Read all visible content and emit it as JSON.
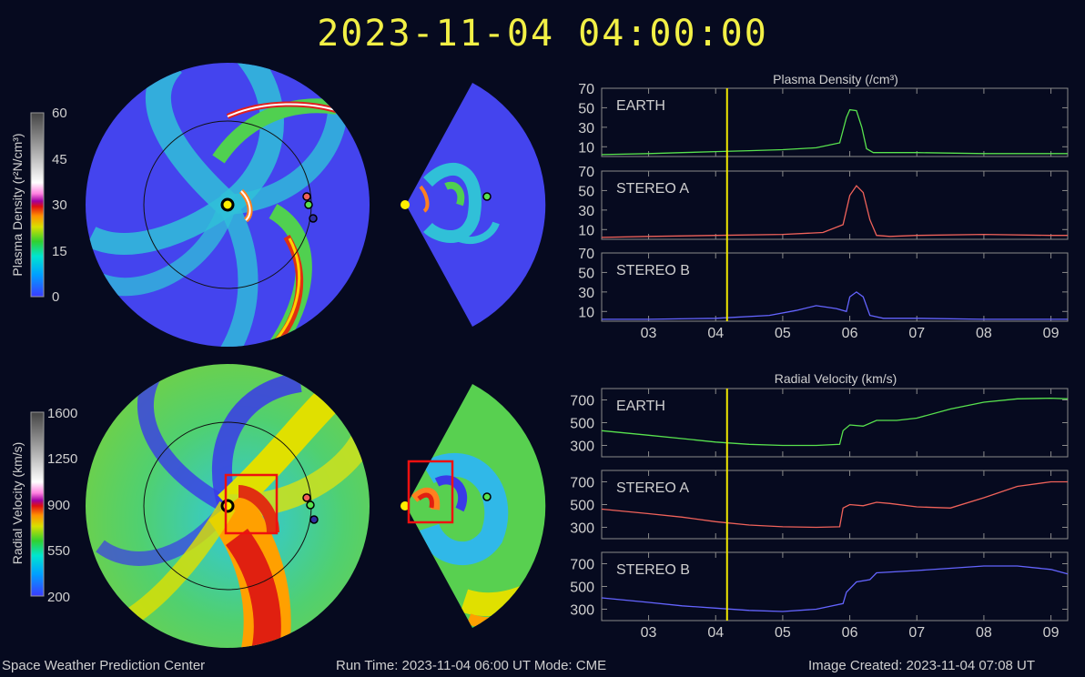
{
  "header": {
    "timestamp": "2023-11-04 04:00:00"
  },
  "colors": {
    "background": "#060a1f",
    "title": "#f2f046",
    "earth": "#58e24e",
    "stereo_a": "#f0625a",
    "stereo_b": "#6464ff",
    "marker_line": "#f2e800"
  },
  "colorbars": {
    "density": {
      "label": "Plasma Density (r²N/cm³)",
      "ticks": [
        "60",
        "45",
        "30",
        "15",
        "0"
      ]
    },
    "velocity": {
      "label": "Radial Velocity (km/s)",
      "ticks": [
        "1600",
        "1250",
        "900",
        "550",
        "200"
      ]
    }
  },
  "footer": {
    "org": "Space Weather Prediction Center",
    "run": "Run Time: 2023-11-04 06:00 UT   Mode: CME",
    "created": "Image Created: 2023-11-04 07:08 UT"
  },
  "chart_data": [
    {
      "type": "line",
      "title": "Plasma Density (/cm³)",
      "x_ticks": [
        "03",
        "04",
        "05",
        "06",
        "07",
        "08",
        "09"
      ],
      "xlim": [
        2.3,
        9.25
      ],
      "ylim": [
        0,
        70
      ],
      "y_ticks": [
        "70",
        "50",
        "30",
        "10"
      ],
      "current_time": 4.17,
      "series": [
        {
          "name": "EARTH",
          "color": "#58e24e",
          "x": [
            2.3,
            3.0,
            3.5,
            4.0,
            4.5,
            5.0,
            5.5,
            5.85,
            5.95,
            6.0,
            6.1,
            6.18,
            6.25,
            6.35,
            6.5,
            7.0,
            8.0,
            9.0,
            9.25
          ],
          "values": [
            2,
            3,
            4,
            5,
            6,
            7,
            9,
            14,
            40,
            48,
            47,
            30,
            8,
            4,
            4,
            4,
            3,
            3,
            3
          ]
        },
        {
          "name": "STEREO A",
          "color": "#f0625a",
          "x": [
            2.3,
            3.0,
            4.0,
            5.0,
            5.6,
            5.9,
            6.0,
            6.1,
            6.2,
            6.3,
            6.4,
            6.6,
            7.0,
            8.0,
            9.0,
            9.25
          ],
          "values": [
            2,
            3,
            4,
            5,
            7,
            15,
            45,
            55,
            48,
            20,
            4,
            3,
            4,
            5,
            4,
            4
          ]
        },
        {
          "name": "STEREO B",
          "color": "#6464ff",
          "x": [
            2.3,
            3.0,
            4.0,
            4.8,
            5.2,
            5.5,
            5.8,
            5.95,
            6.0,
            6.1,
            6.2,
            6.3,
            6.5,
            7.0,
            8.0,
            9.0,
            9.25
          ],
          "values": [
            2,
            2,
            3,
            6,
            11,
            16,
            13,
            10,
            25,
            30,
            25,
            6,
            3,
            3,
            2,
            2,
            2
          ]
        }
      ]
    },
    {
      "type": "line",
      "title": "Radial Velocity (km/s)",
      "x_ticks": [
        "03",
        "04",
        "05",
        "06",
        "07",
        "08",
        "09"
      ],
      "xlim": [
        2.3,
        9.25
      ],
      "ylim": [
        200,
        800
      ],
      "y_ticks": [
        "700",
        "500",
        "300"
      ],
      "current_time": 4.17,
      "series": [
        {
          "name": "EARTH",
          "color": "#58e24e",
          "x": [
            2.3,
            3.0,
            3.5,
            4.0,
            4.5,
            5.0,
            5.5,
            5.85,
            5.9,
            6.0,
            6.2,
            6.4,
            6.7,
            7.0,
            7.5,
            8.0,
            8.5,
            9.0,
            9.25
          ],
          "values": [
            430,
            390,
            360,
            330,
            310,
            300,
            300,
            310,
            430,
            480,
            470,
            520,
            520,
            540,
            620,
            680,
            710,
            715,
            710
          ]
        },
        {
          "name": "STEREO A",
          "color": "#f0625a",
          "x": [
            2.3,
            3.0,
            3.5,
            4.0,
            4.5,
            5.0,
            5.5,
            5.85,
            5.9,
            6.0,
            6.2,
            6.4,
            6.6,
            7.0,
            7.5,
            8.0,
            8.5,
            9.0,
            9.25
          ],
          "values": [
            460,
            420,
            390,
            350,
            320,
            305,
            300,
            305,
            470,
            500,
            490,
            520,
            510,
            480,
            470,
            560,
            660,
            700,
            700
          ]
        },
        {
          "name": "STEREO B",
          "color": "#6464ff",
          "x": [
            2.3,
            3.0,
            3.5,
            4.0,
            4.5,
            5.0,
            5.5,
            5.9,
            5.95,
            6.1,
            6.3,
            6.4,
            7.0,
            7.5,
            8.0,
            8.5,
            9.0,
            9.25
          ],
          "values": [
            400,
            360,
            330,
            310,
            290,
            280,
            300,
            350,
            450,
            540,
            560,
            620,
            640,
            660,
            680,
            680,
            650,
            610
          ]
        }
      ]
    }
  ]
}
